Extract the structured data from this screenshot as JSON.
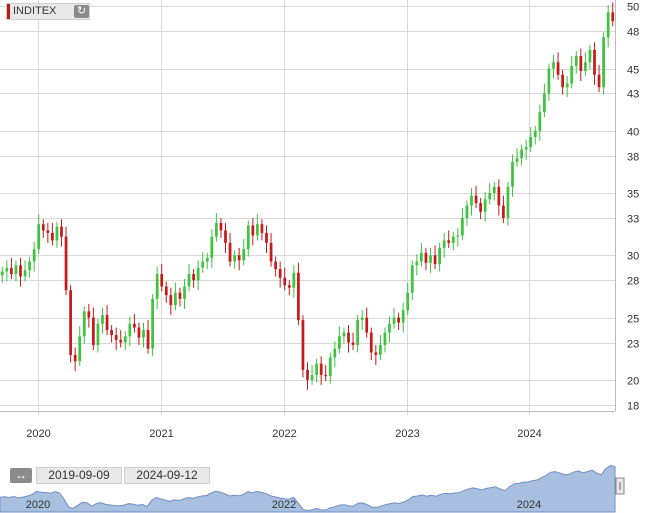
{
  "ticker": {
    "name": "INDITEX",
    "refresh_icon": "refresh-icon"
  },
  "range": {
    "start": "2019-09-09",
    "end": "2024-09-12"
  },
  "navigator": {
    "labels": [
      "2020",
      "2022",
      "2024"
    ]
  },
  "colors": {
    "up": "#3ec43e",
    "down": "#c81a1a",
    "grid": "#d9d9d9",
    "navigator_fill": "#a9bfe0",
    "navigator_line": "#6f8fc4"
  },
  "chart_data": {
    "type": "candlestick",
    "title": "",
    "xlabel": "",
    "ylabel": "",
    "y_ticks": [
      50,
      48,
      45,
      43,
      40,
      38,
      35,
      33,
      30,
      28,
      25,
      23,
      20,
      18
    ],
    "x_ticks": [
      "2020",
      "2021",
      "2022",
      "2023",
      "2024"
    ],
    "x_range": [
      "2019-09-09",
      "2024-09-12"
    ],
    "ylim": [
      17.5,
      50.5
    ],
    "grid": true,
    "close_series": [
      28.7,
      29.0,
      28.5,
      29.2,
      28.3,
      28.8,
      29.5,
      30.5,
      32.5,
      32.0,
      31.8,
      31.2,
      32.3,
      31.5,
      27.2,
      22.0,
      21.5,
      23.5,
      25.5,
      25.0,
      22.8,
      24.5,
      25.2,
      24.0,
      23.6,
      23.2,
      23.0,
      23.5,
      24.5,
      24.2,
      23.4,
      24.0,
      22.5,
      26.5,
      28.5,
      27.5,
      26.8,
      26.0,
      27.0,
      26.5,
      27.5,
      28.5,
      28.0,
      29.0,
      29.5,
      29.8,
      31.5,
      32.6,
      32.0,
      31.0,
      29.5,
      30.0,
      29.6,
      30.5,
      32.4,
      31.6,
      32.5,
      31.8,
      31.0,
      29.5,
      28.9,
      28.2,
      27.6,
      27.4,
      28.6,
      24.8,
      20.8,
      20.0,
      20.4,
      21.3,
      20.4,
      20.3,
      21.8,
      22.5,
      23.5,
      23.8,
      23.0,
      22.8,
      24.8,
      25.0,
      23.8,
      22.2,
      22.0,
      22.8,
      23.8,
      24.5,
      25.0,
      24.6,
      25.6,
      27.0,
      29.2,
      29.5,
      30.2,
      29.4,
      30.0,
      29.3,
      30.6,
      31.2,
      31.0,
      31.5,
      31.6,
      33.0,
      34.0,
      34.8,
      34.2,
      33.5,
      34.5,
      35.0,
      35.5,
      34.0,
      33.0,
      35.5,
      37.5,
      37.8,
      38.5,
      38.7,
      39.5,
      40.0,
      41.5,
      43.0,
      45.0,
      45.5,
      44.5,
      43.5,
      43.8,
      45.2,
      46.0,
      44.8,
      45.5,
      46.5,
      44.5,
      43.5,
      47.5,
      49.5,
      48.8
    ]
  }
}
